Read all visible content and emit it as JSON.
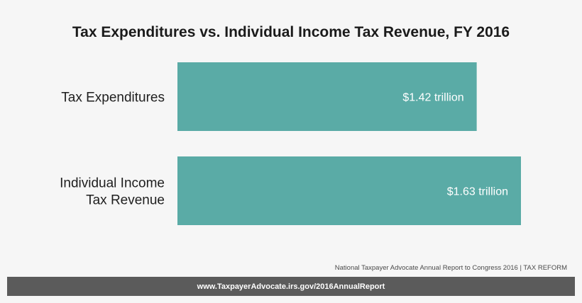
{
  "chart_data": {
    "type": "bar",
    "orientation": "horizontal",
    "title": "Tax Expenditures vs. Individual Income Tax Revenue, FY 2016",
    "categories": [
      [
        "Tax Expenditures"
      ],
      [
        "Individual Income",
        "Tax Revenue"
      ]
    ],
    "values": [
      1.42,
      1.63
    ],
    "value_labels": [
      "$1.42 trillion",
      "$1.63 trillion"
    ],
    "unit": "trillion USD",
    "xlim": [
      0,
      1.63
    ],
    "grid": false,
    "legend": "none",
    "bar_color": "#5aaba6"
  },
  "source_note": "National Taxpayer Advocate Annual Report to Congress 2016 | TAX REFORM",
  "footer": {
    "link_text": "www.TaxpayerAdvocate.irs.gov/2016AnnualReport",
    "background_color": "#5b5b5b"
  }
}
